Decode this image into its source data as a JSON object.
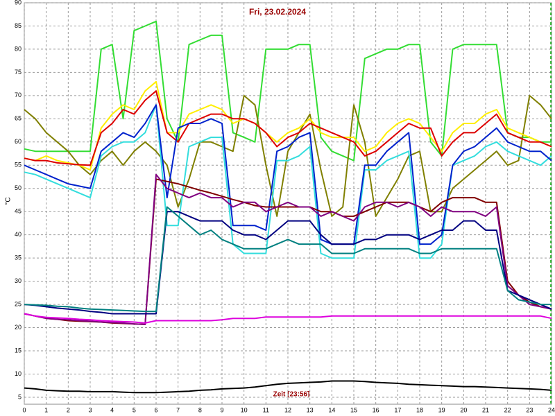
{
  "chart_data": {
    "type": "line",
    "title": "Fri, 23.02.2024",
    "y_label": "°C",
    "annotation": "Zeit [23:56]",
    "xlim": [
      0,
      24
    ],
    "ylim": [
      3.5,
      90
    ],
    "xticks": [
      0,
      1,
      2,
      3,
      4,
      5,
      6,
      7,
      8,
      9,
      10,
      11,
      12,
      13,
      14,
      15,
      16,
      17,
      18,
      19,
      20,
      21,
      22,
      23,
      24
    ],
    "yticks": [
      5,
      10,
      15,
      20,
      25,
      30,
      35,
      40,
      45,
      50,
      55,
      60,
      65,
      70,
      75,
      80,
      85,
      90
    ],
    "grid": true,
    "x": [
      0,
      0.5,
      1,
      1.5,
      2,
      2.5,
      3,
      3.5,
      4,
      4.5,
      5,
      5.5,
      6,
      6.5,
      7,
      7.5,
      8,
      8.5,
      9,
      9.5,
      10,
      10.5,
      11,
      11.5,
      12,
      12.5,
      13,
      13.5,
      14,
      14.5,
      15,
      15.5,
      16,
      16.5,
      17,
      17.5,
      18,
      18.5,
      19,
      19.5,
      20,
      20.5,
      21,
      21.5,
      22,
      22.5,
      23,
      23.5,
      24
    ],
    "series": [
      {
        "color": "#33dd33",
        "values": [
          58.5,
          58,
          58,
          58,
          58,
          58,
          58,
          80,
          81,
          65,
          84,
          85,
          86,
          65,
          60,
          81,
          82,
          83,
          83,
          62,
          61,
          60,
          80,
          80,
          80,
          81,
          81,
          61,
          58,
          57,
          56,
          78,
          79,
          80,
          80,
          81,
          81,
          60,
          57,
          80,
          81,
          81,
          81,
          81,
          62,
          61,
          61,
          60,
          60
        ]
      },
      {
        "color": "#808000",
        "values": [
          67,
          65,
          62,
          60,
          58,
          55,
          53,
          56,
          58,
          55,
          58,
          60,
          58,
          55,
          46,
          52,
          60,
          60,
          59,
          58,
          70,
          68,
          55,
          44,
          58,
          62,
          66,
          54,
          44,
          46,
          68,
          60,
          44,
          48,
          52,
          57,
          58,
          45,
          45,
          50,
          52,
          54,
          56,
          58,
          55,
          56,
          70,
          68,
          65
        ]
      },
      {
        "color": "#ffee00",
        "values": [
          56.5,
          56,
          57,
          56,
          55.5,
          55,
          54,
          63,
          66,
          68,
          67,
          71,
          73,
          62,
          62,
          66,
          67,
          68,
          67,
          64,
          65,
          64,
          62,
          60,
          62,
          63,
          65,
          62,
          61,
          61,
          61,
          58,
          59,
          62,
          64,
          65,
          64,
          61,
          58,
          62,
          64,
          64,
          66,
          67,
          63,
          62,
          61,
          60,
          59
        ]
      },
      {
        "color": "#dd0000",
        "values": [
          56.5,
          56,
          56,
          55.5,
          55.3,
          55.1,
          55,
          62,
          64,
          67,
          66,
          69,
          71,
          62,
          60,
          64,
          65,
          66,
          66,
          65,
          65,
          64,
          62,
          59,
          61,
          62,
          64,
          63,
          62,
          61,
          60,
          57,
          58,
          60,
          62,
          64,
          63,
          63,
          57,
          60,
          62,
          62,
          64,
          66,
          62,
          61,
          60,
          60,
          59
        ]
      },
      {
        "color": "#33dddd",
        "values": [
          53.5,
          53,
          52,
          51,
          50,
          49,
          48,
          57,
          59,
          60,
          60,
          62,
          68,
          42,
          42,
          59,
          60,
          61,
          61,
          38,
          36,
          36,
          36,
          56,
          56,
          57,
          59,
          36,
          35,
          35,
          35,
          54,
          54,
          56,
          57,
          58,
          35,
          35,
          38,
          55,
          56,
          57,
          59,
          60,
          58,
          57,
          56,
          55,
          57
        ]
      },
      {
        "color": "#0022cc",
        "values": [
          55,
          54,
          53,
          52,
          51,
          50.5,
          50,
          58,
          60,
          62,
          61,
          64,
          68,
          48,
          63,
          64,
          64,
          65,
          64,
          42,
          42,
          42,
          41,
          58,
          59,
          61,
          62,
          39,
          38,
          38,
          38,
          55,
          55,
          58,
          60,
          62,
          38,
          38,
          40,
          55,
          58,
          59,
          61,
          63,
          60,
          59,
          58,
          58,
          56
        ]
      },
      {
        "color": "#800000",
        "values": [
          23,
          22.5,
          22,
          21.8,
          21.5,
          21.4,
          21.3,
          21.2,
          21,
          20.9,
          20.8,
          20.7,
          52,
          51.5,
          51,
          50.3,
          49.6,
          49,
          48.3,
          47.6,
          47,
          46.3,
          46,
          46,
          46,
          46,
          46,
          45,
          45,
          44,
          44,
          45,
          46,
          47,
          47,
          47,
          46,
          45,
          47,
          48,
          48,
          48,
          47,
          47,
          30,
          27,
          25.5,
          24.5,
          24
        ]
      },
      {
        "color": "#800080",
        "values": [
          23,
          22.5,
          22,
          21.8,
          21.7,
          21.5,
          21.4,
          21.2,
          21.1,
          21,
          20.8,
          20.7,
          53,
          50,
          49,
          48,
          49,
          48,
          48,
          46,
          47,
          47,
          45,
          46,
          47,
          46,
          46,
          44,
          45,
          44,
          43,
          46,
          47,
          47,
          46,
          47,
          46,
          44,
          46,
          45,
          45,
          45,
          44,
          46,
          29,
          27,
          25,
          24.5,
          24
        ]
      },
      {
        "color": "#000080",
        "values": [
          25,
          24.8,
          24.5,
          24.2,
          24,
          23.8,
          23.5,
          23.3,
          23,
          23,
          23,
          23,
          23,
          45,
          45,
          44,
          43,
          43,
          43,
          41,
          40,
          40,
          39,
          41,
          43,
          43,
          43,
          40,
          38,
          38,
          38,
          39,
          39,
          40,
          40,
          40,
          39,
          40,
          41,
          41,
          43,
          43,
          41,
          41,
          28,
          27,
          26,
          25,
          24
        ]
      },
      {
        "color": "#008080",
        "values": [
          25,
          24.9,
          24.8,
          24.6,
          24.5,
          24.2,
          24,
          23.9,
          23.8,
          23.7,
          23.6,
          23.5,
          23.5,
          46,
          44,
          42,
          40,
          41,
          39,
          38,
          37,
          37,
          37,
          38,
          39,
          38,
          38,
          38,
          36,
          36,
          36,
          37,
          37,
          37,
          37,
          37,
          36,
          36,
          37,
          37,
          37,
          37,
          37,
          37,
          28,
          26,
          25.5,
          25,
          25
        ]
      },
      {
        "color": "#dd00dd",
        "values": [
          23,
          22.5,
          22.2,
          22.1,
          22,
          21.8,
          21.7,
          21.5,
          21.4,
          21.3,
          21.2,
          21,
          21.5,
          21.5,
          21.5,
          21.5,
          21.5,
          21.5,
          21.7,
          22,
          22,
          22,
          22.3,
          22.3,
          22.3,
          22.3,
          22.3,
          22.3,
          22.5,
          22.5,
          22.5,
          22.5,
          22.5,
          22.5,
          22.5,
          22.5,
          22.5,
          22.5,
          22.5,
          22.5,
          22.5,
          22.5,
          22.5,
          22.5,
          22.5,
          22.5,
          22.5,
          22.5,
          22
        ]
      },
      {
        "color": "#000000",
        "values": [
          7,
          6.8,
          6.5,
          6.4,
          6.3,
          6.3,
          6.2,
          6.2,
          6.2,
          6.1,
          6,
          6,
          6,
          6.1,
          6.2,
          6.3,
          6.5,
          6.6,
          6.8,
          6.9,
          7,
          7.2,
          7.5,
          7.8,
          8,
          8.1,
          8.2,
          8.3,
          8.5,
          8.5,
          8.5,
          8.4,
          8.2,
          8.1,
          8,
          7.8,
          7.7,
          7.6,
          7.5,
          7.4,
          7.3,
          7.3,
          7.2,
          7.1,
          7,
          6.9,
          6.8,
          6.7,
          6.5
        ]
      }
    ]
  }
}
